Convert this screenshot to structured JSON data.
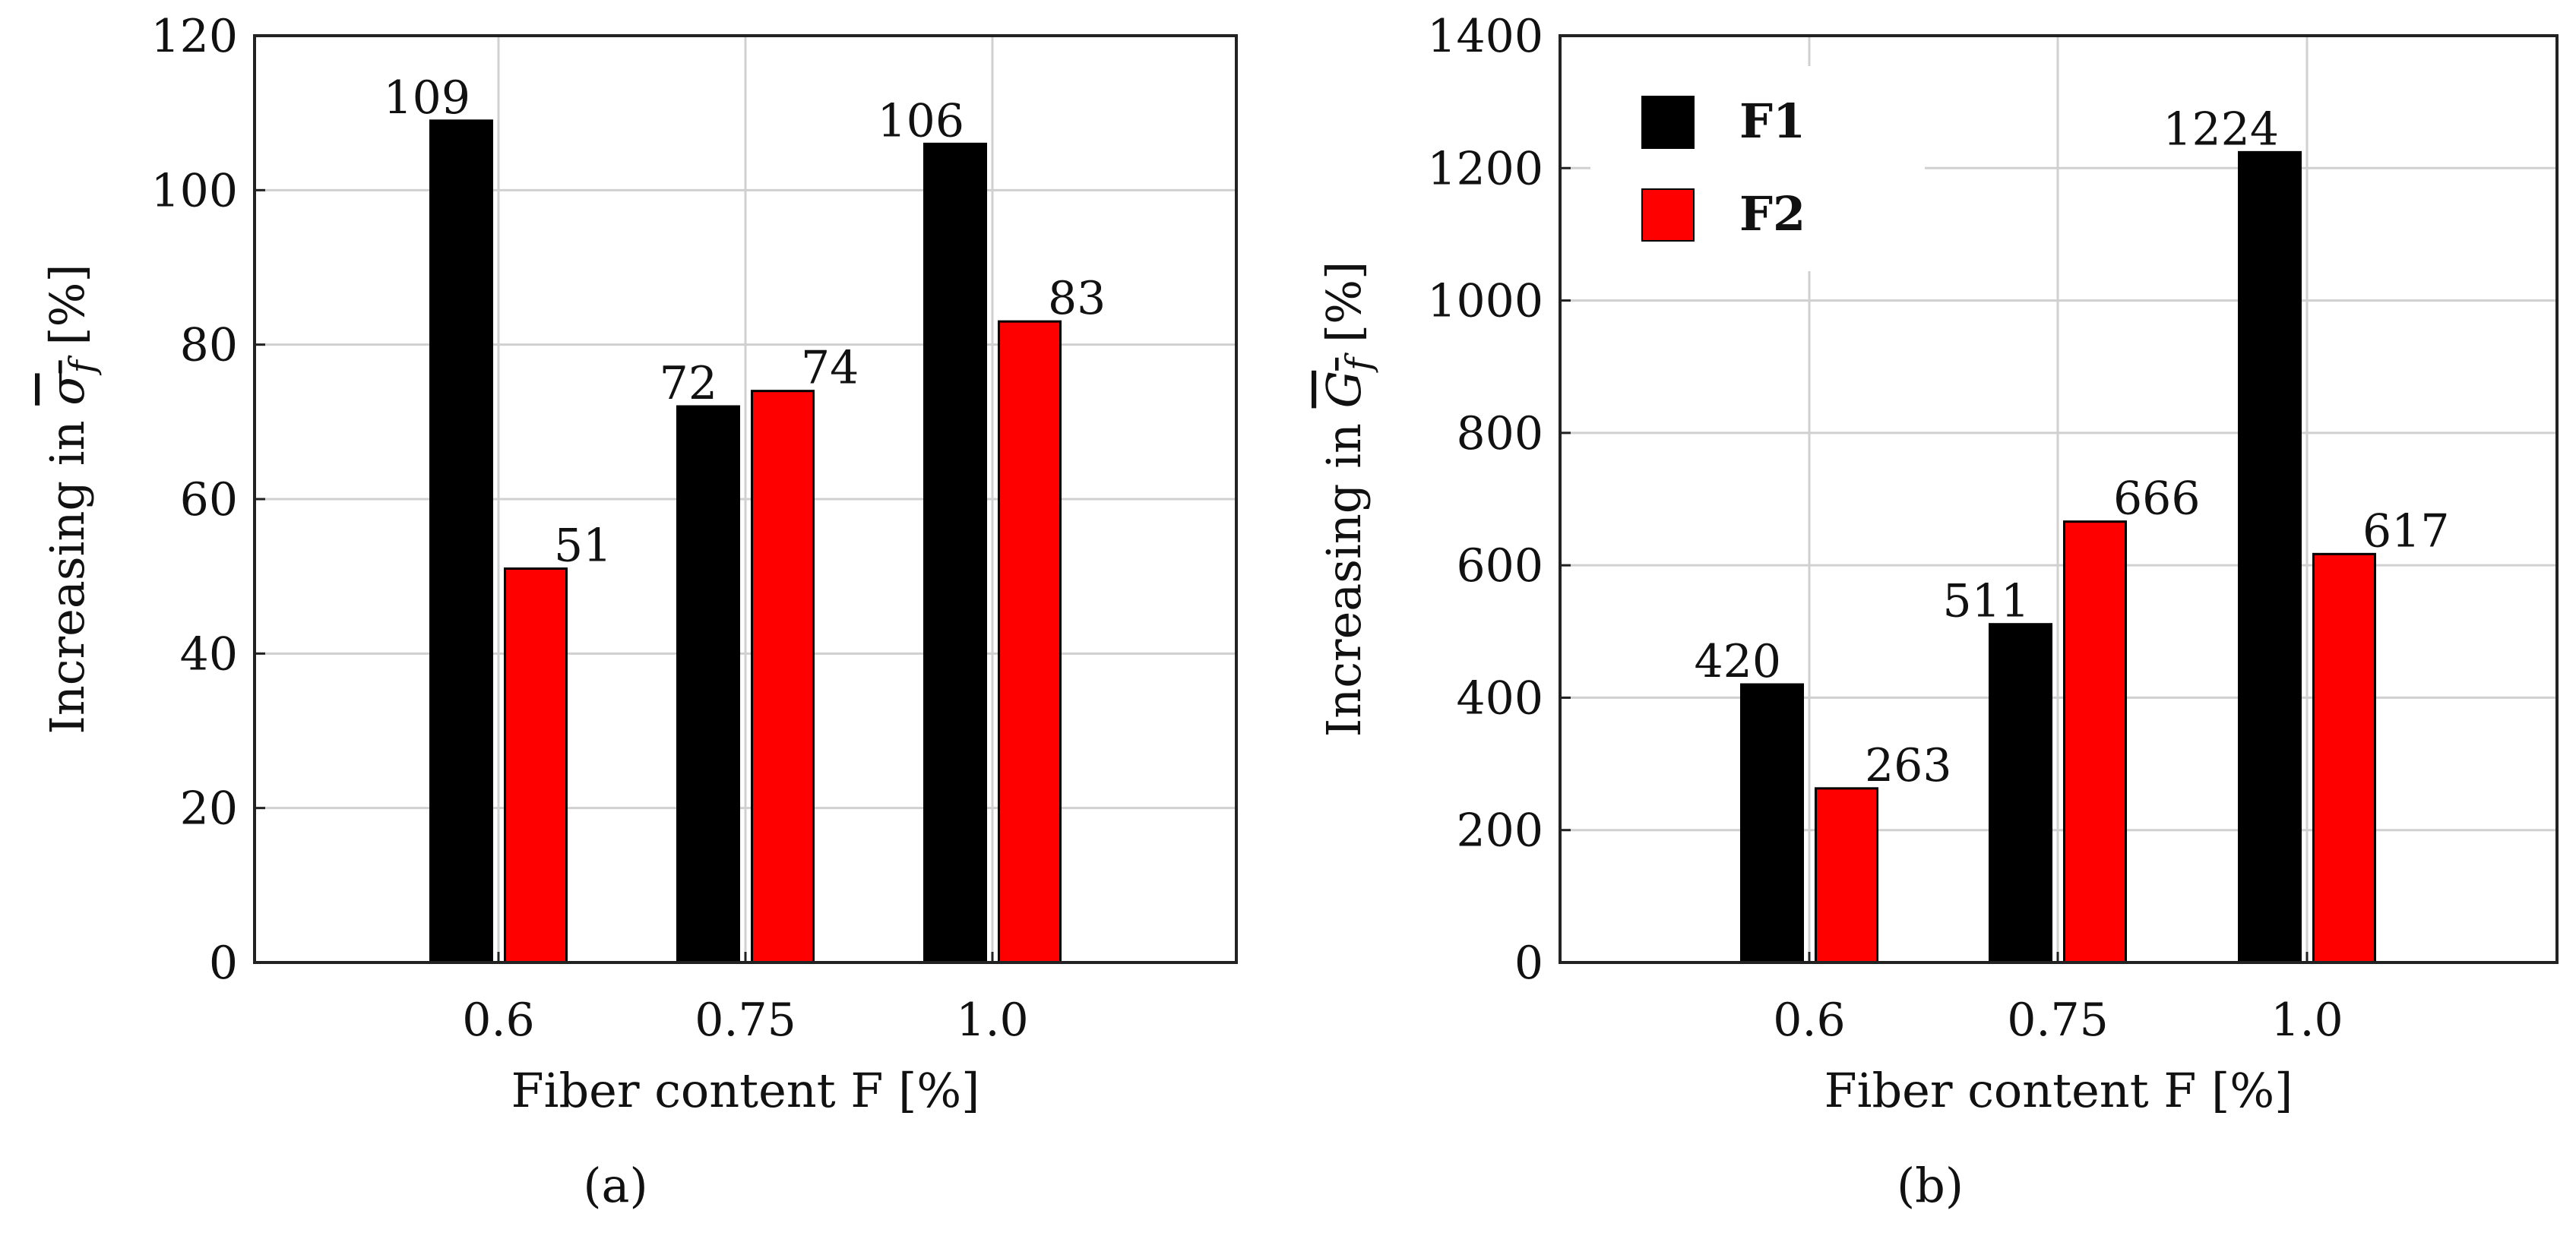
{
  "chart_data": [
    {
      "panel_label": "(a)",
      "type": "bar",
      "categories": [
        "0.6",
        "0.75",
        "1.0"
      ],
      "series": [
        {
          "name": "F1",
          "values": [
            109,
            72,
            106
          ]
        },
        {
          "name": "F2",
          "values": [
            51,
            74,
            83
          ]
        }
      ],
      "data_labels": [
        [
          "109",
          "72",
          "106"
        ],
        [
          "51",
          "74",
          "83"
        ]
      ],
      "xlabel": "Fiber content F [%]",
      "ylabel": {
        "prefix": "Increasing in ",
        "symbol": "σ",
        "subscript": "f",
        "suffix": " [%]"
      },
      "ylim": [
        0,
        120
      ],
      "yticks": [
        0,
        20,
        40,
        60,
        80,
        100,
        120
      ],
      "ytick_labels": [
        "0",
        "20",
        "40",
        "60",
        "80",
        "100",
        "120"
      ],
      "grid": true,
      "legend": null
    },
    {
      "panel_label": "(b)",
      "type": "bar",
      "categories": [
        "0.6",
        "0.75",
        "1.0"
      ],
      "series": [
        {
          "name": "F1",
          "values": [
            420,
            511,
            1224
          ]
        },
        {
          "name": "F2",
          "values": [
            263,
            666,
            617
          ]
        }
      ],
      "data_labels": [
        [
          "420",
          "511",
          "1224"
        ],
        [
          "263",
          "666",
          "617"
        ]
      ],
      "xlabel": "Fiber content F [%]",
      "ylabel": {
        "prefix": "Increasing in ",
        "symbol": "G",
        "subscript": "f",
        "suffix": " [%]"
      },
      "ylim": [
        0,
        1400
      ],
      "yticks": [
        0,
        200,
        400,
        600,
        800,
        1000,
        1200,
        1400
      ],
      "ytick_labels": [
        "0",
        "200",
        "400",
        "600",
        "800",
        "1000",
        "1200",
        "1400"
      ],
      "grid": true,
      "legend": {
        "position": "top-left",
        "entries": [
          "F1",
          "F2"
        ]
      }
    }
  ],
  "colors": {
    "F1": "#000000",
    "F2": "#ff0000",
    "grid": "#d0d0d0",
    "axis": "#222222"
  }
}
